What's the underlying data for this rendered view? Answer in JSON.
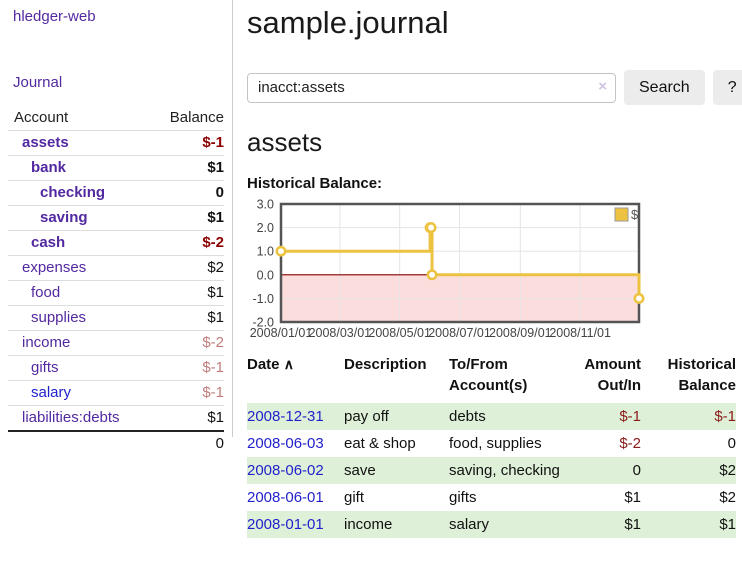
{
  "app": {
    "brand": "hledger-web",
    "nav": {
      "journal": "Journal"
    }
  },
  "sidebar": {
    "headers": {
      "account": "Account",
      "balance": "Balance"
    },
    "accounts": [
      {
        "name": "assets",
        "balance": "$-1",
        "level": 1,
        "bold": true,
        "negative": "strong"
      },
      {
        "name": "bank",
        "balance": "$1",
        "level": 2,
        "bold": true
      },
      {
        "name": "checking",
        "balance": "0",
        "level": 3,
        "bold": true
      },
      {
        "name": "saving",
        "balance": "$1",
        "level": 3,
        "bold": true
      },
      {
        "name": "cash",
        "balance": "$-2",
        "level": 2,
        "bold": true,
        "negative": "strong"
      },
      {
        "name": "expenses",
        "balance": "$2",
        "level": 1
      },
      {
        "name": "food",
        "balance": "$1",
        "level": 2
      },
      {
        "name": "supplies",
        "balance": "$1",
        "level": 2
      },
      {
        "name": "income",
        "balance": "$-2",
        "level": 1,
        "negative": "muted"
      },
      {
        "name": "gifts",
        "balance": "$-1",
        "level": 2,
        "negative": "muted"
      },
      {
        "name": "salary",
        "balance": "$-1",
        "level": 2,
        "negative": "muted",
        "link_color": "blue"
      },
      {
        "name": "liabilities:debts",
        "balance": "$1",
        "level": 1
      }
    ],
    "total": "0"
  },
  "header": {
    "title": "sample.journal"
  },
  "search": {
    "value": "inacct:assets",
    "clear_icon": "×",
    "button_label": "Search",
    "help_label": "?"
  },
  "account_page": {
    "heading": "assets",
    "chart_label": "Historical Balance:"
  },
  "chart_data": {
    "type": "line",
    "step": true,
    "title": "Historical Balance:",
    "legend": {
      "label": "$",
      "position": "top-right"
    },
    "x_range": [
      "2008-01-01",
      "2008-12-31"
    ],
    "x_ticks": [
      {
        "date": "2008-01-01",
        "label": "2008/01/01"
      },
      {
        "date": "2008-03-01",
        "label": "2008/03/01"
      },
      {
        "date": "2008-05-01",
        "label": "2008/05/01"
      },
      {
        "date": "2008-07-01",
        "label": "2008/07/01"
      },
      {
        "date": "2008-09-01",
        "label": "2008/09/01"
      },
      {
        "date": "2008-11-01",
        "label": "2008/11/01"
      }
    ],
    "y_ticks": [
      "3.0",
      "2.0",
      "1.0",
      "0.0",
      "-1.0",
      "-2.0"
    ],
    "ylim": [
      -2,
      3
    ],
    "grid": true,
    "series": [
      {
        "name": "$",
        "color": "#edc240",
        "points": [
          {
            "date": "2008-01-01",
            "value": 1
          },
          {
            "date": "2008-06-01",
            "value": 2
          },
          {
            "date": "2008-06-02",
            "value": 2
          },
          {
            "date": "2008-06-03",
            "value": 0
          },
          {
            "date": "2008-12-31",
            "value": -1
          }
        ]
      }
    ],
    "styles": {
      "negative_fill": "#fcdddd",
      "zero_line": "#8b0000",
      "grid": "#e5e5e5",
      "border": "#545454",
      "axis_text": "#444"
    }
  },
  "register": {
    "sort_icon": "∧",
    "columns": [
      {
        "label": "Date",
        "sort": true
      },
      {
        "label": "Description"
      },
      {
        "label": "To/From Account(s)"
      },
      {
        "label": "Amount Out/In",
        "align": "right"
      },
      {
        "label": "Historical Balance",
        "align": "right"
      }
    ],
    "rows": [
      {
        "date": "2008-12-31",
        "description": "pay off",
        "accounts": "debts",
        "amount": "$-1",
        "amount_negative": true,
        "balance": "$-1",
        "balance_negative": true,
        "highlighted": true
      },
      {
        "date": "2008-06-03",
        "description": "eat & shop",
        "accounts": "food, supplies",
        "amount": "$-2",
        "amount_negative": true,
        "balance": "0",
        "balance_negative": false,
        "highlighted": false
      },
      {
        "date": "2008-06-02",
        "description": "save",
        "accounts": "saving, checking",
        "amount": "0",
        "amount_negative": false,
        "balance": "$2",
        "balance_negative": false,
        "highlighted": true
      },
      {
        "date": "2008-06-01",
        "description": "gift",
        "accounts": "gifts",
        "amount": "$1",
        "amount_negative": false,
        "balance": "$2",
        "balance_negative": false,
        "highlighted": false
      },
      {
        "date": "2008-01-01",
        "description": "income",
        "accounts": "salary",
        "amount": "$1",
        "amount_negative": false,
        "balance": "$1",
        "balance_negative": false,
        "highlighted": true
      }
    ]
  },
  "colors": {
    "link_purple": "#5229a0",
    "link_blue": "#2222cc",
    "negative_strong": "#8b0000",
    "negative_muted": "#c17d7d",
    "negative_table": "#8b1a1a",
    "row_highlight": "#dff0d8",
    "chart_line": "#edc240"
  }
}
